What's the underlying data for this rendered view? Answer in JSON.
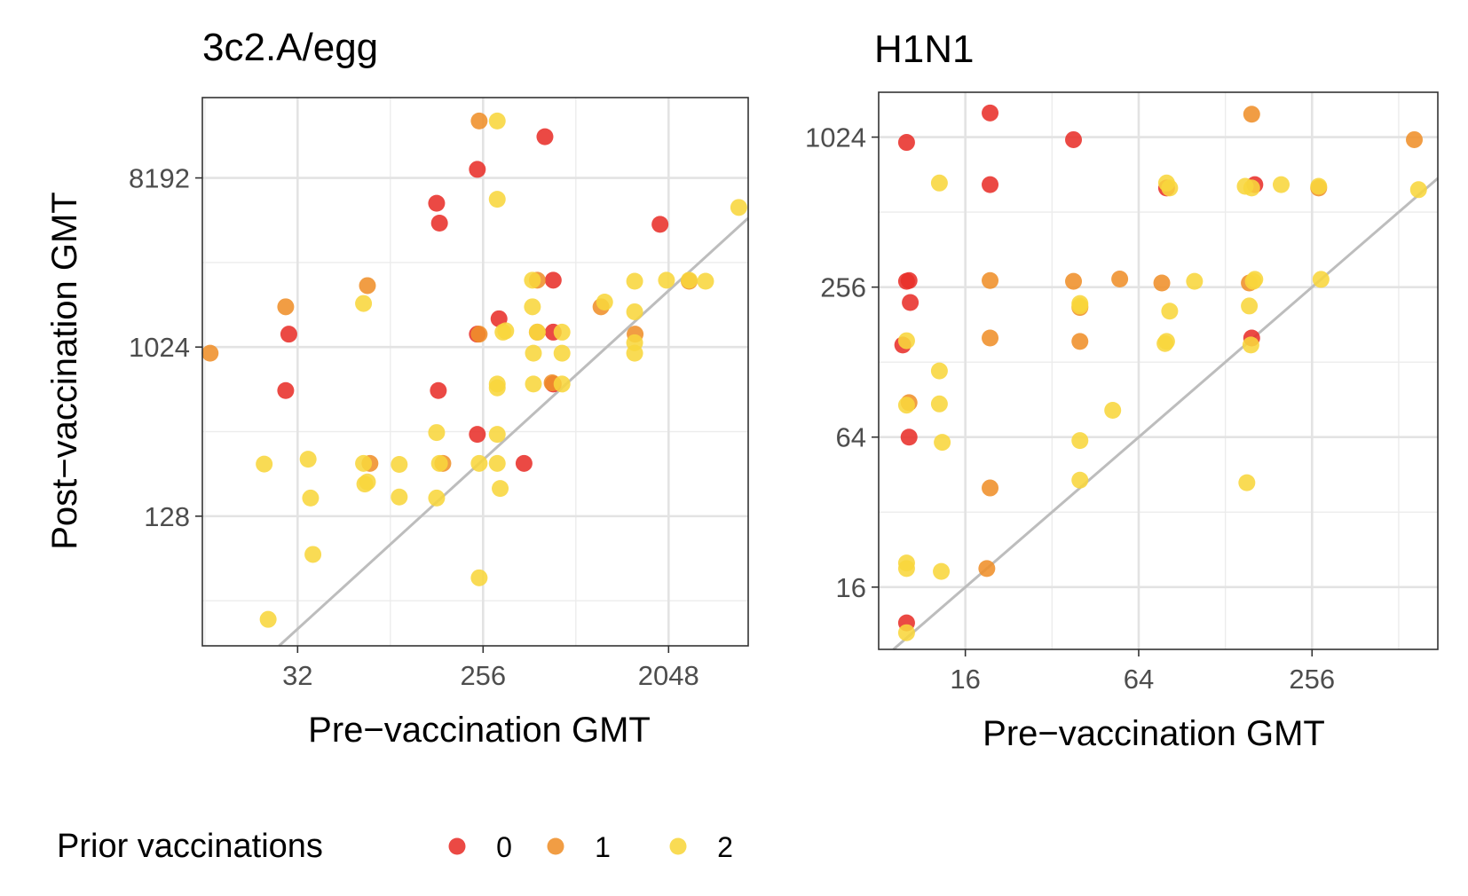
{
  "legend": {
    "title": "Prior vaccinations",
    "items": [
      {
        "label": "0",
        "color": "#e8302a"
      },
      {
        "label": "1",
        "color": "#ef8f2a"
      },
      {
        "label": "2",
        "color": "#f8d63c"
      }
    ]
  },
  "chart_data": [
    {
      "type": "scatter",
      "title": "3c2.A/egg",
      "xlabel": "Pre−vaccination GMT",
      "ylabel": "Post−vaccination GMT",
      "scale": "log2",
      "xlim": [
        11,
        5000
      ],
      "ylim": [
        26,
        22000
      ],
      "xticks": [
        32,
        256,
        2048
      ],
      "xtick_labels": [
        "32",
        "256",
        "2048"
      ],
      "yticks": [
        128,
        1024,
        8192
      ],
      "ytick_labels": [
        "128",
        "1024",
        "8192"
      ],
      "reference_line": "y = x",
      "grid": true,
      "legend_position": "bottom",
      "series": [
        {
          "name": "0",
          "color": "#e8302a",
          "points": [
            [
              29,
              1200
            ],
            [
              28,
              600
            ],
            [
              152,
              6000
            ],
            [
              157,
              4700
            ],
            [
              240,
              9100
            ],
            [
              512,
              13600
            ],
            [
              240,
              1200
            ],
            [
              240,
              350
            ],
            [
              306,
              1450
            ],
            [
              155,
              600
            ],
            [
              562,
              1230
            ],
            [
              562,
              2330
            ],
            [
              1861,
              4630
            ],
            [
              405,
              245
            ],
            [
              562,
              650
            ]
          ]
        },
        {
          "name": "1",
          "color": "#ef8f2a",
          "points": [
            [
              12,
              950
            ],
            [
              28,
              1680
            ],
            [
              70,
              2180
            ],
            [
              72,
              245
            ],
            [
              163,
              245
            ],
            [
              245,
              16500
            ],
            [
              245,
              1200
            ],
            [
              470,
              2330
            ],
            [
              470,
              1230
            ],
            [
              960,
              1680
            ],
            [
              1407,
              1200
            ],
            [
              2580,
              2300
            ],
            [
              555,
              660
            ]
          ]
        },
        {
          "name": "2",
          "color": "#f8d63c",
          "points": [
            [
              22,
              243
            ],
            [
              23,
              36
            ],
            [
              36,
              258
            ],
            [
              37,
              160
            ],
            [
              38,
              80
            ],
            [
              67,
              1750
            ],
            [
              67,
              245
            ],
            [
              68,
              190
            ],
            [
              70,
              195
            ],
            [
              100,
              242
            ],
            [
              100,
              162
            ],
            [
              152,
              358
            ],
            [
              152,
              160
            ],
            [
              157,
              245
            ],
            [
              245,
              245
            ],
            [
              245,
              60
            ],
            [
              300,
              16500
            ],
            [
              300,
              6300
            ],
            [
              300,
              650
            ],
            [
              300,
              620
            ],
            [
              300,
              350
            ],
            [
              300,
              245
            ],
            [
              310,
              180
            ],
            [
              445,
              2330
            ],
            [
              445,
              1680
            ],
            [
              470,
              1230
            ],
            [
              450,
              950
            ],
            [
              450,
              650
            ],
            [
              620,
              1230
            ],
            [
              620,
              950
            ],
            [
              620,
              650
            ],
            [
              1000,
              1780
            ],
            [
              1400,
              2300
            ],
            [
              1400,
              1580
            ],
            [
              1400,
              1080
            ],
            [
              1400,
              950
            ],
            [
              2000,
              2330
            ],
            [
              2580,
              2330
            ],
            [
              3100,
              2300
            ],
            [
              4500,
              5700
            ],
            [
              320,
              1230
            ],
            [
              330,
              1250
            ]
          ]
        }
      ]
    },
    {
      "type": "scatter",
      "title": "H1N1",
      "xlabel": "Pre−vaccination GMT",
      "ylabel": "",
      "scale": "log2",
      "xlim": [
        8,
        700
      ],
      "ylim": [
        9,
        1550
      ],
      "xticks": [
        16,
        64,
        256
      ],
      "xtick_labels": [
        "16",
        "64",
        "256"
      ],
      "yticks": [
        16,
        64,
        256,
        1024
      ],
      "ytick_labels": [
        "16",
        "64",
        "256",
        "1024"
      ],
      "reference_line": "y = x",
      "grid": true,
      "legend_position": "bottom",
      "series": [
        {
          "name": "0",
          "color": "#e8302a",
          "points": [
            [
              10,
              975
            ],
            [
              19.5,
              1280
            ],
            [
              19.5,
              660
            ],
            [
              38,
              1000
            ],
            [
              10,
              270
            ],
            [
              10.2,
              272
            ],
            [
              10.3,
              222
            ],
            [
              9.7,
              150
            ],
            [
              10.2,
              64
            ],
            [
              10,
              11.5
            ],
            [
              80,
              640
            ],
            [
              162,
              660
            ],
            [
              158,
              160
            ]
          ]
        },
        {
          "name": "1",
          "color": "#ef8f2a",
          "points": [
            [
              19.5,
              272
            ],
            [
              19.5,
              160
            ],
            [
              19.5,
              40
            ],
            [
              19,
              19
            ],
            [
              38,
              270
            ],
            [
              40,
              212
            ],
            [
              40,
              155
            ],
            [
              55,
              276
            ],
            [
              77,
              266
            ],
            [
              158,
              1265
            ],
            [
              155,
              266
            ],
            [
              270,
              640
            ],
            [
              580,
              1000
            ],
            [
              10.2,
              88
            ]
          ]
        },
        {
          "name": "2",
          "color": "#f8d63c",
          "points": [
            [
              13,
              670
            ],
            [
              10,
              156
            ],
            [
              10,
              86
            ],
            [
              10,
              20
            ],
            [
              10,
              19
            ],
            [
              13,
              118
            ],
            [
              13,
              87
            ],
            [
              13.3,
              61
            ],
            [
              13.2,
              18.5
            ],
            [
              10,
              10.5
            ],
            [
              40,
              215
            ],
            [
              40,
              43
            ],
            [
              40,
              62
            ],
            [
              52,
              82
            ],
            [
              80,
              670
            ],
            [
              82,
              640
            ],
            [
              82,
              205
            ],
            [
              80,
              155
            ],
            [
              79,
              152
            ],
            [
              100,
              270
            ],
            [
              150,
              650
            ],
            [
              158,
              640
            ],
            [
              155,
              215
            ],
            [
              160,
              270
            ],
            [
              162,
              275
            ],
            [
              152,
              42
            ],
            [
              157,
              150
            ],
            [
              200,
              660
            ],
            [
              270,
              650
            ],
            [
              275,
              275
            ],
            [
              600,
              630
            ],
            [
              40,
              220
            ]
          ]
        }
      ]
    }
  ]
}
